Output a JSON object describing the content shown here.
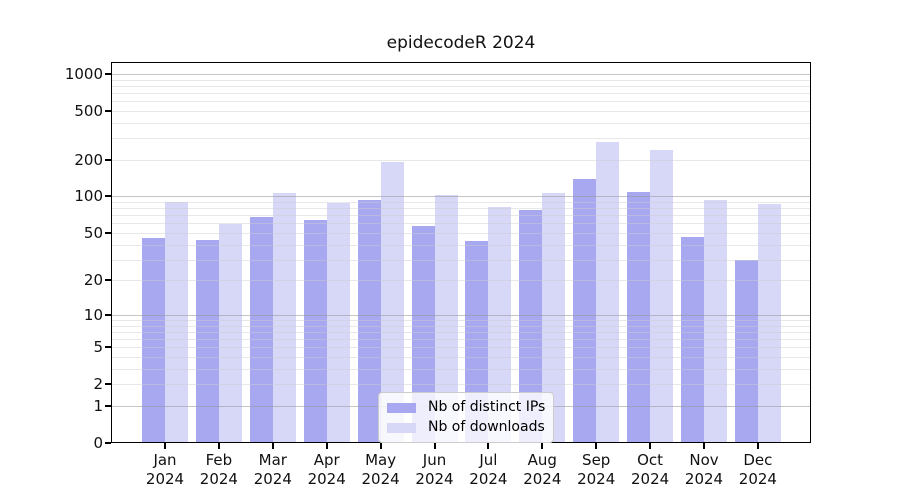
{
  "chart_data": {
    "type": "bar",
    "title": "epidecodeR 2024",
    "months": [
      "Jan",
      "Feb",
      "Mar",
      "Apr",
      "May",
      "Jun",
      "Jul",
      "Aug",
      "Sep",
      "Oct",
      "Nov",
      "Dec"
    ],
    "year": "2024",
    "series": [
      {
        "name": "Nb of distinct IPs",
        "color": "#a8a8f0",
        "values": [
          45,
          44,
          68,
          64,
          94,
          57,
          43,
          78,
          139,
          108,
          46,
          30
        ]
      },
      {
        "name": "Nb of downloads",
        "color": "#d7d7f7",
        "values": [
          90,
          59,
          107,
          88,
          191,
          103,
          82,
          107,
          279,
          240,
          94,
          87
        ]
      }
    ],
    "yscale": "log1p",
    "yticks": [
      0,
      1,
      2,
      5,
      10,
      20,
      50,
      100,
      200,
      500,
      1000
    ],
    "ylim": [
      0,
      1100
    ],
    "grid": "both",
    "legend_position": "lower center",
    "colors": {
      "major_gridline": "#b5b5b5",
      "minor_gridline": "#e9e9e9",
      "frame": "#000000",
      "background": "#ffffff"
    }
  }
}
